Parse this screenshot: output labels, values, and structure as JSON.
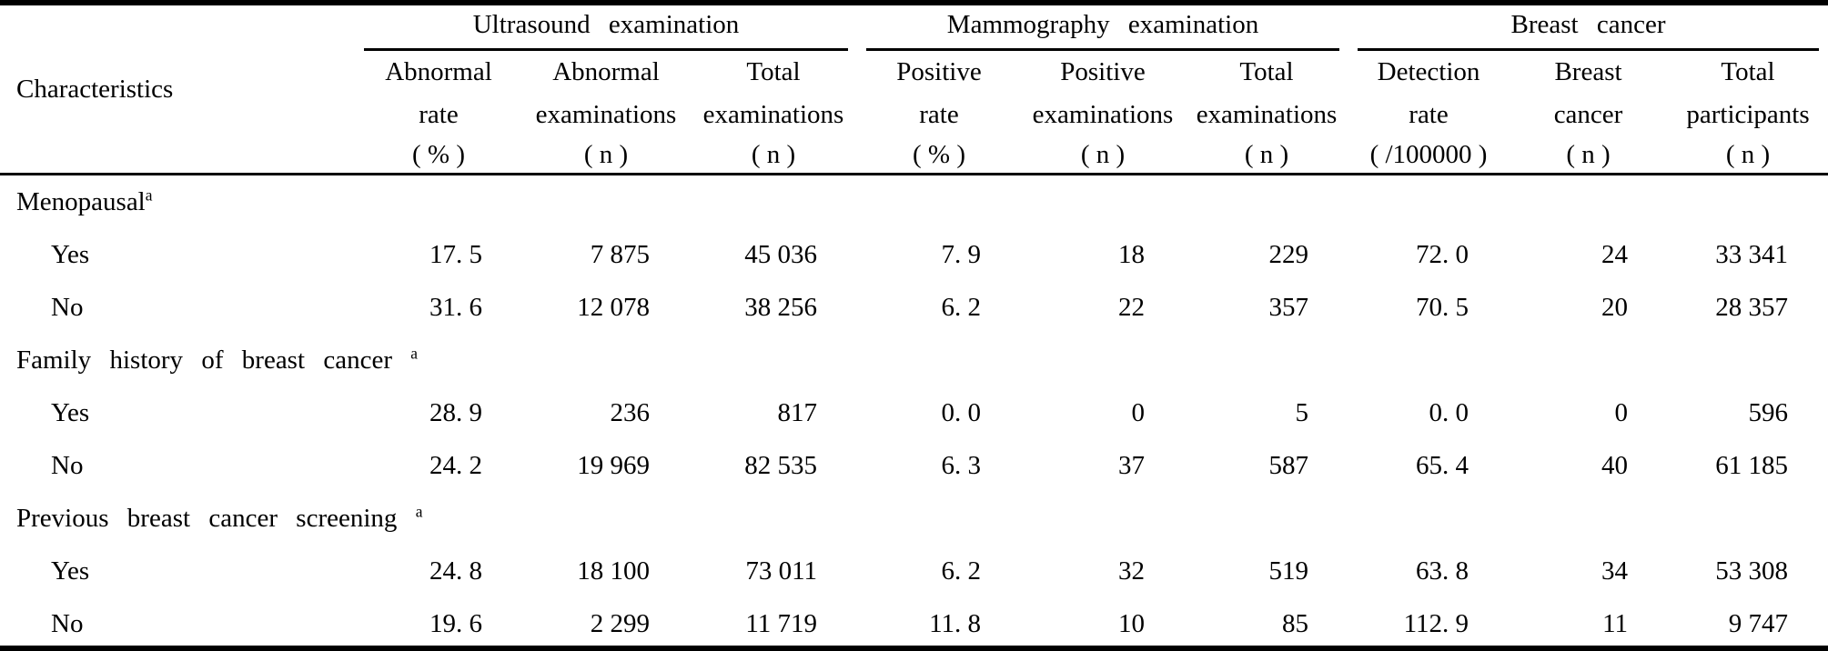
{
  "table": {
    "characteristics_header": "Characteristics",
    "groups": [
      {
        "label": "Ultrasound examination",
        "columns": [
          {
            "line1": "Abnormal",
            "line2": "rate",
            "unit": "( % )"
          },
          {
            "line1": "Abnormal",
            "line2": "examinations",
            "unit": "( n )"
          },
          {
            "line1": "Total",
            "line2": "examinations",
            "unit": "( n )"
          }
        ]
      },
      {
        "label": "Mammography examination",
        "columns": [
          {
            "line1": "Positive",
            "line2": "rate",
            "unit": "( % )"
          },
          {
            "line1": "Positive",
            "line2": "examinations",
            "unit": "( n )"
          },
          {
            "line1": "Total",
            "line2": "examinations",
            "unit": "( n )"
          }
        ]
      },
      {
        "label": "Breast cancer",
        "columns": [
          {
            "line1": "Detection",
            "line2": "rate",
            "unit": "( /100000 )"
          },
          {
            "line1": "Breast",
            "line2": "cancer",
            "unit": "( n )"
          },
          {
            "line1": "Total",
            "line2": "participants",
            "unit": "( n )"
          }
        ]
      }
    ],
    "rows": [
      {
        "type": "section",
        "label": "Menopausal",
        "sup": "a"
      },
      {
        "type": "data",
        "label": "Yes",
        "values": [
          "17. 5",
          "7 875",
          "45 036",
          "7. 9",
          "18",
          "229",
          "72. 0",
          "24",
          "33 341"
        ]
      },
      {
        "type": "data",
        "label": "No",
        "values": [
          "31. 6",
          "12 078",
          "38 256",
          "6. 2",
          "22",
          "357",
          "70. 5",
          "20",
          "28 357"
        ]
      },
      {
        "type": "section",
        "label": "Family history of breast cancer ",
        "sup": "a"
      },
      {
        "type": "data",
        "label": "Yes",
        "values": [
          "28. 9",
          "236",
          "817",
          "0. 0",
          "0",
          "5",
          "0. 0",
          "0",
          "596"
        ]
      },
      {
        "type": "data",
        "label": "No",
        "values": [
          "24. 2",
          "19 969",
          "82 535",
          "6. 3",
          "37",
          "587",
          "65. 4",
          "40",
          "61 185"
        ]
      },
      {
        "type": "section",
        "label": "Previous breast cancer screening ",
        "sup": "a"
      },
      {
        "type": "data",
        "label": "Yes",
        "values": [
          "24. 8",
          "18 100",
          "73 011",
          "6. 2",
          "32",
          "519",
          "63. 8",
          "34",
          "53 308"
        ]
      },
      {
        "type": "data",
        "label": "No",
        "values": [
          "19. 6",
          "2 299",
          "11 719",
          "11. 8",
          "10",
          "85",
          "112. 9",
          "11",
          "9 747"
        ]
      }
    ]
  },
  "colors": {
    "text": "#000000",
    "background": "#ffffff",
    "rule": "#000000"
  }
}
